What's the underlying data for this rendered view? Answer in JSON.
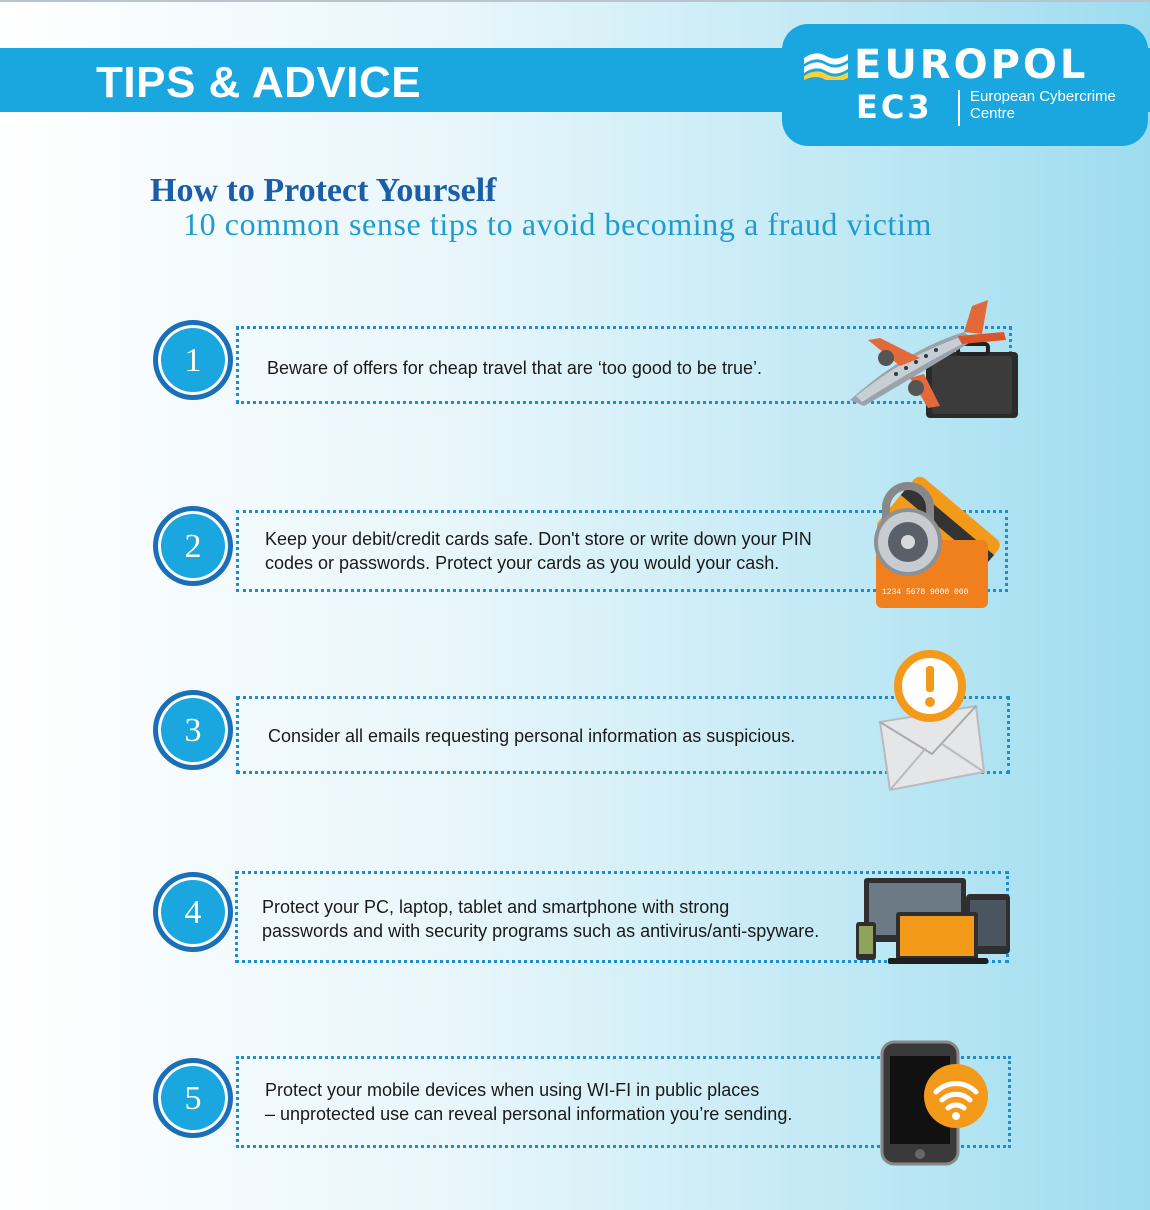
{
  "banner": {
    "title": "TIPS & ADVICE"
  },
  "logo": {
    "name": "EUROPOL",
    "unit": "EC3",
    "unit_full": "European Cybercrime Centre"
  },
  "heading": {
    "title": "How to Protect Yourself",
    "subtitle": "10 common sense tips to avoid becoming a fraud victim"
  },
  "tips": [
    {
      "number": "1",
      "lines": [
        "Beware of offers for cheap travel that are ‘too good to be true’."
      ],
      "icon": "airplane-luggage-icon"
    },
    {
      "number": "2",
      "lines": [
        "Keep your debit/credit cards safe. Don't store or write down your PIN",
        "codes or passwords. Protect your cards as you would your cash."
      ],
      "icon": "locked-credit-card-icon",
      "card_number": "1234 5678 9000 000"
    },
    {
      "number": "3",
      "lines": [
        "Consider all emails requesting personal information as suspicious."
      ],
      "icon": "email-warning-icon"
    },
    {
      "number": "4",
      "lines": [
        "Protect your PC, laptop, tablet and smartphone with strong",
        "passwords and with security programs such as antivirus/anti-spyware."
      ],
      "icon": "devices-icon"
    },
    {
      "number": "5",
      "lines": [
        "Protect your mobile devices when using WI-FI in public places",
        "– unprotected use can reveal personal information you’re sending."
      ],
      "icon": "smartphone-wifi-icon"
    }
  ],
  "colors": {
    "banner": "#1aa7df",
    "heading": "#1b5ea8",
    "subheading": "#1f9ccf",
    "accent_orange": "#f39a1b"
  }
}
